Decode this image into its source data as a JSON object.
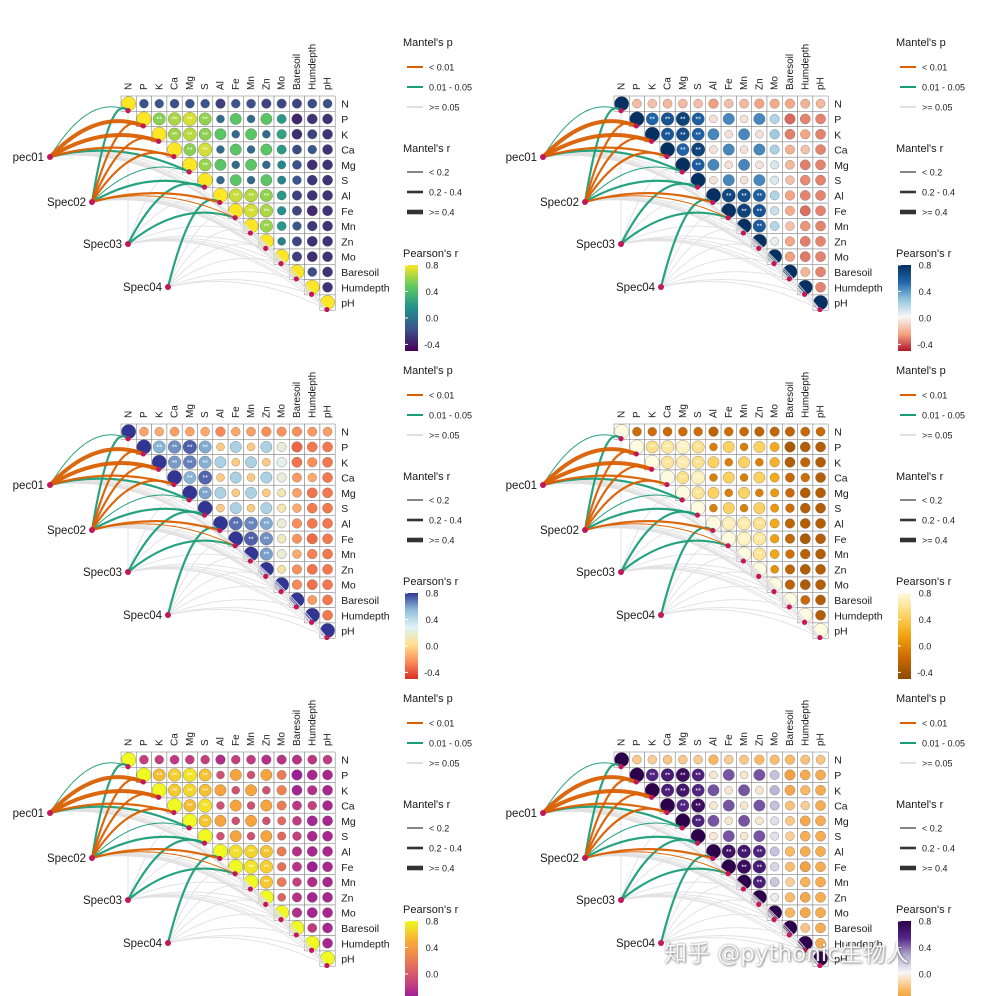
{
  "chart_data": {
    "type": "heatmap",
    "description_grid": "6 panels (3 rows x 2 columns), identical data, different color palettes",
    "variables": [
      "N",
      "P",
      "K",
      "Ca",
      "Mg",
      "S",
      "Al",
      "Fe",
      "Mn",
      "Zn",
      "Mo",
      "Baresoil",
      "Humdepth",
      "pH"
    ],
    "species": [
      "pec01",
      "Spec02",
      "Spec03",
      "Spec04"
    ],
    "mantel_p_title": "Mantel's p",
    "mantel_p_levels": [
      "< 0.01",
      "0.01 - 0.05",
      ">= 0.05"
    ],
    "mantel_p_colors": [
      "#d95f02",
      "#1b9e77",
      "#e0e0e0"
    ],
    "mantel_r_title": "Mantel's r",
    "mantel_r_levels": [
      "< 0.2",
      "0.2 - 0.4",
      ">= 0.4"
    ],
    "pearson_title": "Pearson's r",
    "pearson_ticks": [
      "0.8",
      "0.4",
      "0.0",
      "-0.4"
    ],
    "pearson_range": [
      -0.5,
      0.8
    ],
    "links": [
      {
        "from": "pec01",
        "to": "N",
        "p": "mid",
        "r": "small"
      },
      {
        "from": "pec01",
        "to": "P",
        "p": "low",
        "r": "large"
      },
      {
        "from": "pec01",
        "to": "K",
        "p": "low",
        "r": "large"
      },
      {
        "from": "pec01",
        "to": "Ca",
        "p": "low",
        "r": "mid"
      },
      {
        "from": "pec01",
        "to": "Mg",
        "p": "mid",
        "r": "mid"
      },
      {
        "from": "pec01",
        "to": "S",
        "p": "ns",
        "r": "small"
      },
      {
        "from": "pec01",
        "to": "Al",
        "p": "ns",
        "r": "small"
      },
      {
        "from": "pec01",
        "to": "Fe",
        "p": "ns",
        "r": "small"
      },
      {
        "from": "pec01",
        "to": "Mn",
        "p": "ns",
        "r": "small"
      },
      {
        "from": "pec01",
        "to": "Zn",
        "p": "ns",
        "r": "small"
      },
      {
        "from": "pec01",
        "to": "Mo",
        "p": "ns",
        "r": "small"
      },
      {
        "from": "pec01",
        "to": "Baresoil",
        "p": "ns",
        "r": "small"
      },
      {
        "from": "pec01",
        "to": "Humdepth",
        "p": "ns",
        "r": "small"
      },
      {
        "from": "pec01",
        "to": "pH",
        "p": "ns",
        "r": "small"
      },
      {
        "from": "Spec02",
        "to": "N",
        "p": "mid",
        "r": "mid"
      },
      {
        "from": "Spec02",
        "to": "P",
        "p": "low",
        "r": "mid"
      },
      {
        "from": "Spec02",
        "to": "K",
        "p": "low",
        "r": "mid"
      },
      {
        "from": "Spec02",
        "to": "Ca",
        "p": "low",
        "r": "mid"
      },
      {
        "from": "Spec02",
        "to": "Mg",
        "p": "mid",
        "r": "small"
      },
      {
        "from": "Spec02",
        "to": "S",
        "p": "mid",
        "r": "mid"
      },
      {
        "from": "Spec02",
        "to": "Al",
        "p": "low",
        "r": "mid"
      },
      {
        "from": "Spec02",
        "to": "Fe",
        "p": "low",
        "r": "small"
      },
      {
        "from": "Spec02",
        "to": "Mn",
        "p": "ns",
        "r": "small"
      },
      {
        "from": "Spec02",
        "to": "Zn",
        "p": "ns",
        "r": "small"
      },
      {
        "from": "Spec02",
        "to": "Mo",
        "p": "ns",
        "r": "small"
      },
      {
        "from": "Spec02",
        "to": "Baresoil",
        "p": "ns",
        "r": "small"
      },
      {
        "from": "Spec02",
        "to": "Humdepth",
        "p": "ns",
        "r": "small"
      },
      {
        "from": "Spec02",
        "to": "pH",
        "p": "ns",
        "r": "small"
      },
      {
        "from": "Spec03",
        "to": "N",
        "p": "ns",
        "r": "small"
      },
      {
        "from": "Spec03",
        "to": "Mg",
        "p": "ns",
        "r": "small"
      },
      {
        "from": "Spec03",
        "to": "S",
        "p": "mid",
        "r": "mid"
      },
      {
        "from": "Spec03",
        "to": "Al",
        "p": "ns",
        "r": "small"
      },
      {
        "from": "Spec03",
        "to": "Fe",
        "p": "mid",
        "r": "mid"
      },
      {
        "from": "Spec03",
        "to": "Mn",
        "p": "ns",
        "r": "small"
      },
      {
        "from": "Spec03",
        "to": "Zn",
        "p": "ns",
        "r": "small"
      },
      {
        "from": "Spec03",
        "to": "Mo",
        "p": "ns",
        "r": "small"
      },
      {
        "from": "Spec03",
        "to": "Baresoil",
        "p": "ns",
        "r": "small"
      },
      {
        "from": "Spec03",
        "to": "Humdepth",
        "p": "ns",
        "r": "small"
      },
      {
        "from": "Spec03",
        "to": "pH",
        "p": "ns",
        "r": "small"
      },
      {
        "from": "Spec04",
        "to": "Al",
        "p": "mid",
        "r": "mid"
      },
      {
        "from": "Spec04",
        "to": "Fe",
        "p": "ns",
        "r": "small"
      },
      {
        "from": "Spec04",
        "to": "Mn",
        "p": "ns",
        "r": "small"
      },
      {
        "from": "Spec04",
        "to": "Zn",
        "p": "ns",
        "r": "small"
      },
      {
        "from": "Spec04",
        "to": "Mo",
        "p": "ns",
        "r": "small"
      },
      {
        "from": "Spec04",
        "to": "Baresoil",
        "p": "ns",
        "r": "small"
      },
      {
        "from": "Spec04",
        "to": "Humdepth",
        "p": "ns",
        "r": "small"
      },
      {
        "from": "Spec04",
        "to": "pH",
        "p": "ns",
        "r": "small"
      }
    ],
    "panels": [
      {
        "palette": "viridis",
        "stops": [
          "#440154",
          "#3b528b",
          "#21918c",
          "#5ec962",
          "#fde725"
        ]
      },
      {
        "palette": "RdBu",
        "stops": [
          "#b2182b",
          "#f4a582",
          "#f7f7f7",
          "#92c5de",
          "#2166ac",
          "#053061"
        ]
      },
      {
        "palette": "RdYlBu",
        "stops": [
          "#d73027",
          "#fc8d59",
          "#fee090",
          "#e0f3f8",
          "#91bfdb",
          "#313695"
        ]
      },
      {
        "palette": "YlOrBr",
        "stops": [
          "#8c4a05",
          "#cc6a04",
          "#f2a20c",
          "#fdd66a",
          "#fffbe0"
        ]
      },
      {
        "palette": "plasma",
        "stops": [
          "#7a06a8",
          "#c33b80",
          "#e6735a",
          "#f8a839",
          "#f0f921"
        ]
      },
      {
        "palette": "PuOr",
        "stops": [
          "#e08214",
          "#fdb863",
          "#f7f7f7",
          "#b2abd2",
          "#542788",
          "#2d004b"
        ]
      }
    ]
  },
  "watermark": "知乎 @pythonic生物人"
}
